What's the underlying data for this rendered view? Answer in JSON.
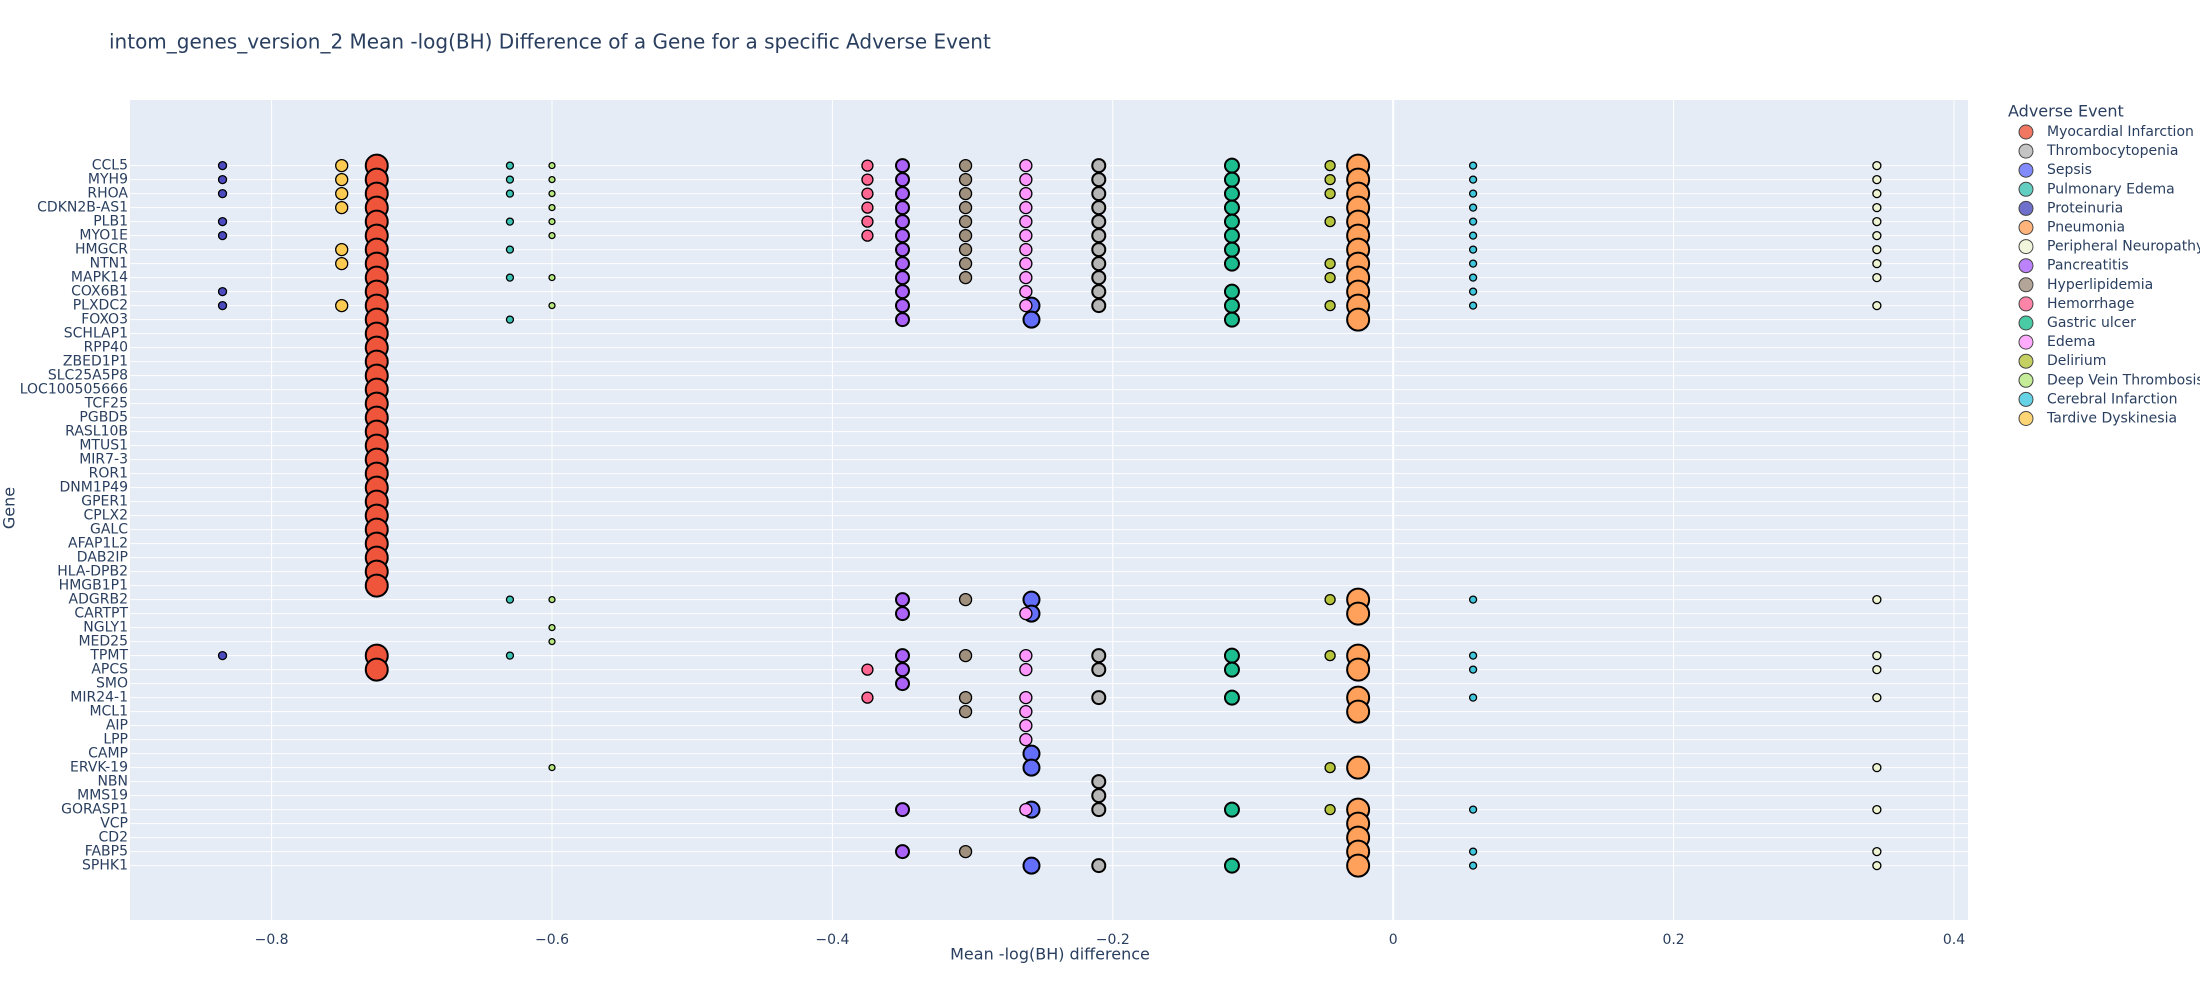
{
  "chart_data": {
    "type": "scatter",
    "title": "intom_genes_version_2 Mean -log(BH) Difference of a Gene for a specific Adverse Event",
    "x_label": "Mean -log(BH) difference",
    "y_label": "Gene",
    "legend_title": "Adverse Event",
    "xlim": [
      -0.901,
      0.41
    ],
    "xticks": [
      {
        "value": -0.8,
        "label": "−0.8"
      },
      {
        "value": -0.6,
        "label": "−0.6"
      },
      {
        "value": -0.4,
        "label": "−0.4"
      },
      {
        "value": -0.2,
        "label": "−0.2"
      },
      0,
      0.2,
      0.4
    ],
    "grid": true,
    "legend": "right",
    "y_categories": [
      "CCL5",
      "MYH9",
      "RHOA",
      "CDKN2B-AS1",
      "PLB1",
      "MYO1E",
      "HMGCR",
      "NTN1",
      "MAPK14",
      "COX6B1",
      "PLXDC2",
      "FOXO3",
      "SCHLAP1",
      "RPP40",
      "ZBED1P1",
      "SLC25A5P8",
      "LOC100505666",
      "TCF25",
      "PGBD5",
      "RASL10B",
      "MTUS1",
      "MIR7-3",
      "ROR1",
      "DNM1P49",
      "GPER1",
      "CPLX2",
      "GALC",
      "AFAP1L2",
      "DAB2IP",
      "HLA-DPB2",
      "HMGB1P1",
      "ADGRB2",
      "CARTPT",
      "NGLY1",
      "MED25",
      "TPMT",
      "APCS",
      "SMO",
      "MIR24-1",
      "MCL1",
      "AIP",
      "LPP",
      "CAMP",
      "ERVK-19",
      "NBN",
      "MMS19",
      "GORASP1",
      "VCP",
      "CD2",
      "FABP5",
      "SPHK1"
    ],
    "series": [
      {
        "name": "Myocardial Infarction",
        "color": "#EF553B",
        "size": 20,
        "y": [
          "CCL5",
          "MYH9",
          "RHOA",
          "CDKN2B-AS1",
          "PLB1",
          "MYO1E",
          "HMGCR",
          "NTN1",
          "MAPK14",
          "COX6B1",
          "PLXDC2",
          "FOXO3",
          "SCHLAP1",
          "RPP40",
          "ZBED1P1",
          "SLC25A5P8",
          "LOC100505666",
          "TCF25",
          "PGBD5",
          "RASL10B",
          "MTUS1",
          "MIR7-3",
          "ROR1",
          "DNM1P49",
          "GPER1",
          "CPLX2",
          "GALC",
          "AFAP1L2",
          "DAB2IP",
          "HLA-DPB2",
          "HMGB1P1",
          "TPMT",
          "APCS"
        ],
        "x": [
          -0.725,
          -0.725,
          -0.725,
          -0.725,
          -0.725,
          -0.725,
          -0.725,
          -0.725,
          -0.725,
          -0.725,
          -0.725,
          -0.725,
          -0.725,
          -0.725,
          -0.725,
          -0.725,
          -0.725,
          -0.725,
          -0.725,
          -0.725,
          -0.725,
          -0.725,
          -0.725,
          -0.725,
          -0.725,
          -0.725,
          -0.725,
          -0.725,
          -0.725,
          -0.725,
          -0.725,
          -0.725,
          -0.725
        ]
      },
      {
        "name": "Thrombocytopenia",
        "color": "#B5B5B5",
        "size": 11,
        "y": [
          "CCL5",
          "MYH9",
          "RHOA",
          "CDKN2B-AS1",
          "PLB1",
          "MYO1E",
          "HMGCR",
          "NTN1",
          "MAPK14",
          "COX6B1",
          "PLXDC2",
          "TPMT",
          "APCS",
          "MIR24-1",
          "NBN",
          "MMS19",
          "GORASP1",
          "SPHK1"
        ],
        "x": [
          -0.21,
          -0.21,
          -0.21,
          -0.21,
          -0.21,
          -0.21,
          -0.21,
          -0.21,
          -0.21,
          -0.21,
          -0.21,
          -0.21,
          -0.21,
          -0.21,
          -0.21,
          -0.21,
          -0.21,
          -0.21
        ]
      },
      {
        "name": "Sepsis",
        "color": "#636EFA",
        "size": 14,
        "y": [
          "PLXDC2",
          "FOXO3",
          "ADGRB2",
          "CARTPT",
          "CAMP",
          "ERVK-19",
          "GORASP1",
          "SPHK1"
        ],
        "x": [
          -0.258,
          -0.258,
          -0.258,
          -0.258,
          -0.258,
          -0.258,
          -0.258,
          -0.258
        ]
      },
      {
        "name": "Pulmonary Edema",
        "color": "#3CC3B4",
        "size": 5,
        "y": [
          "CCL5",
          "MYH9",
          "RHOA",
          "PLB1",
          "HMGCR",
          "MAPK14",
          "FOXO3",
          "ADGRB2",
          "TPMT"
        ],
        "x": [
          -0.63,
          -0.63,
          -0.63,
          -0.63,
          -0.63,
          -0.63,
          -0.63,
          -0.63,
          -0.63
        ]
      },
      {
        "name": "Proteinuria",
        "color": "#4B4BBF",
        "size": 6,
        "y": [
          "CCL5",
          "MYH9",
          "RHOA",
          "PLB1",
          "MYO1E",
          "COX6B1",
          "PLXDC2",
          "TPMT"
        ],
        "x": [
          -0.835,
          -0.835,
          -0.835,
          -0.835,
          -0.835,
          -0.835,
          -0.835,
          -0.835
        ]
      },
      {
        "name": "Pneumonia",
        "color": "#FFA15A",
        "size": 20,
        "y": [
          "CCL5",
          "MYH9",
          "RHOA",
          "CDKN2B-AS1",
          "PLB1",
          "MYO1E",
          "HMGCR",
          "NTN1",
          "MAPK14",
          "COX6B1",
          "PLXDC2",
          "FOXO3",
          "ADGRB2",
          "CARTPT",
          "TPMT",
          "APCS",
          "MIR24-1",
          "MCL1",
          "ERVK-19",
          "GORASP1",
          "VCP",
          "CD2",
          "FABP5",
          "SPHK1"
        ],
        "x": [
          -0.025,
          -0.025,
          -0.025,
          -0.025,
          -0.025,
          -0.025,
          -0.025,
          -0.025,
          -0.025,
          -0.025,
          -0.025,
          -0.025,
          -0.025,
          -0.025,
          -0.025,
          -0.025,
          -0.025,
          -0.025,
          -0.025,
          -0.025,
          -0.025,
          -0.025,
          -0.025,
          -0.025
        ]
      },
      {
        "name": "Peripheral Neuropathy",
        "color": "#EEF3D2",
        "size": 6,
        "y": [
          "CCL5",
          "MYH9",
          "RHOA",
          "CDKN2B-AS1",
          "PLB1",
          "MYO1E",
          "HMGCR",
          "NTN1",
          "MAPK14",
          "PLXDC2",
          "ADGRB2",
          "TPMT",
          "APCS",
          "MIR24-1",
          "ERVK-19",
          "GORASP1",
          "FABP5",
          "SPHK1"
        ],
        "x": [
          0.345,
          0.345,
          0.345,
          0.345,
          0.345,
          0.345,
          0.345,
          0.345,
          0.345,
          0.345,
          0.345,
          0.345,
          0.345,
          0.345,
          0.345,
          0.345,
          0.345,
          0.345
        ]
      },
      {
        "name": "Pancreatitis",
        "color": "#AB63FA",
        "size": 11,
        "y": [
          "CCL5",
          "MYH9",
          "RHOA",
          "CDKN2B-AS1",
          "PLB1",
          "MYO1E",
          "HMGCR",
          "NTN1",
          "MAPK14",
          "COX6B1",
          "PLXDC2",
          "FOXO3",
          "ADGRB2",
          "CARTPT",
          "TPMT",
          "APCS",
          "SMO",
          "GORASP1",
          "FABP5"
        ],
        "x": [
          -0.35,
          -0.35,
          -0.35,
          -0.35,
          -0.35,
          -0.35,
          -0.35,
          -0.35,
          -0.35,
          -0.35,
          -0.35,
          -0.35,
          -0.35,
          -0.35,
          -0.35,
          -0.35,
          -0.35,
          -0.35,
          -0.35
        ]
      },
      {
        "name": "Hyperlipidemia",
        "color": "#A0907E",
        "size": 10,
        "y": [
          "CCL5",
          "MYH9",
          "RHOA",
          "CDKN2B-AS1",
          "PLB1",
          "MYO1E",
          "HMGCR",
          "NTN1",
          "MAPK14",
          "ADGRB2",
          "TPMT",
          "MIR24-1",
          "MCL1",
          "FABP5"
        ],
        "x": [
          -0.305,
          -0.305,
          -0.305,
          -0.305,
          -0.305,
          -0.305,
          -0.305,
          -0.305,
          -0.305,
          -0.305,
          -0.305,
          -0.305,
          -0.305,
          -0.305
        ]
      },
      {
        "name": "Hemorrhage",
        "color": "#FF6692",
        "size": 9,
        "y": [
          "CCL5",
          "MYH9",
          "RHOA",
          "CDKN2B-AS1",
          "PLB1",
          "MYO1E",
          "APCS",
          "MIR24-1"
        ],
        "x": [
          -0.375,
          -0.375,
          -0.375,
          -0.375,
          -0.375,
          -0.375,
          -0.375,
          -0.375
        ]
      },
      {
        "name": "Gastric ulcer",
        "color": "#1CBE8F",
        "size": 12,
        "y": [
          "CCL5",
          "MYH9",
          "RHOA",
          "CDKN2B-AS1",
          "PLB1",
          "MYO1E",
          "HMGCR",
          "NTN1",
          "COX6B1",
          "PLXDC2",
          "FOXO3",
          "TPMT",
          "APCS",
          "MIR24-1",
          "GORASP1",
          "SPHK1"
        ],
        "x": [
          -0.115,
          -0.115,
          -0.115,
          -0.115,
          -0.115,
          -0.115,
          -0.115,
          -0.115,
          -0.115,
          -0.115,
          -0.115,
          -0.115,
          -0.115,
          -0.115,
          -0.115,
          -0.115
        ]
      },
      {
        "name": "Edema",
        "color": "#FF97FF",
        "size": 10,
        "y": [
          "CCL5",
          "MYH9",
          "RHOA",
          "CDKN2B-AS1",
          "PLB1",
          "MYO1E",
          "HMGCR",
          "NTN1",
          "MAPK14",
          "COX6B1",
          "PLXDC2",
          "CARTPT",
          "TPMT",
          "APCS",
          "MIR24-1",
          "MCL1",
          "AIP",
          "LPP",
          "GORASP1"
        ],
        "x": [
          -0.262,
          -0.262,
          -0.262,
          -0.262,
          -0.262,
          -0.262,
          -0.262,
          -0.262,
          -0.262,
          -0.262,
          -0.262,
          -0.262,
          -0.262,
          -0.262,
          -0.262,
          -0.262,
          -0.262,
          -0.262,
          -0.262
        ]
      },
      {
        "name": "Delirium",
        "color": "#B6C43B",
        "size": 8,
        "y": [
          "CCL5",
          "MYH9",
          "RHOA",
          "PLB1",
          "NTN1",
          "MAPK14",
          "PLXDC2",
          "ADGRB2",
          "TPMT",
          "ERVK-19",
          "GORASP1"
        ],
        "x": [
          -0.045,
          -0.045,
          -0.045,
          -0.045,
          -0.045,
          -0.045,
          -0.045,
          -0.045,
          -0.045,
          -0.045,
          -0.045
        ]
      },
      {
        "name": "Deep Vein Thrombosis",
        "color": "#B6E880",
        "size": 4,
        "y": [
          "CCL5",
          "MYH9",
          "RHOA",
          "CDKN2B-AS1",
          "PLB1",
          "MYO1E",
          "MAPK14",
          "PLXDC2",
          "ADGRB2",
          "NGLY1",
          "MED25",
          "ERVK-19"
        ],
        "x": [
          -0.6,
          -0.6,
          -0.6,
          -0.6,
          -0.6,
          -0.6,
          -0.6,
          -0.6,
          -0.6,
          -0.6,
          -0.6,
          -0.6
        ]
      },
      {
        "name": "Cerebral Infarction",
        "color": "#3FC7DE",
        "size": 5,
        "y": [
          "CCL5",
          "MYH9",
          "RHOA",
          "CDKN2B-AS1",
          "PLB1",
          "MYO1E",
          "HMGCR",
          "NTN1",
          "MAPK14",
          "COX6B1",
          "PLXDC2",
          "ADGRB2",
          "TPMT",
          "APCS",
          "MIR24-1",
          "GORASP1",
          "FABP5",
          "SPHK1"
        ],
        "x": [
          0.057,
          0.057,
          0.057,
          0.057,
          0.057,
          0.057,
          0.057,
          0.057,
          0.057,
          0.057,
          0.057,
          0.057,
          0.057,
          0.057,
          0.057,
          0.057,
          0.057,
          0.057
        ]
      },
      {
        "name": "Tardive Dyskinesia",
        "color": "#FECB52",
        "size": 10,
        "y": [
          "CCL5",
          "MYH9",
          "RHOA",
          "CDKN2B-AS1",
          "HMGCR",
          "NTN1",
          "PLXDC2"
        ],
        "x": [
          -0.75,
          -0.75,
          -0.75,
          -0.75,
          -0.75,
          -0.75,
          -0.75
        ]
      }
    ]
  }
}
